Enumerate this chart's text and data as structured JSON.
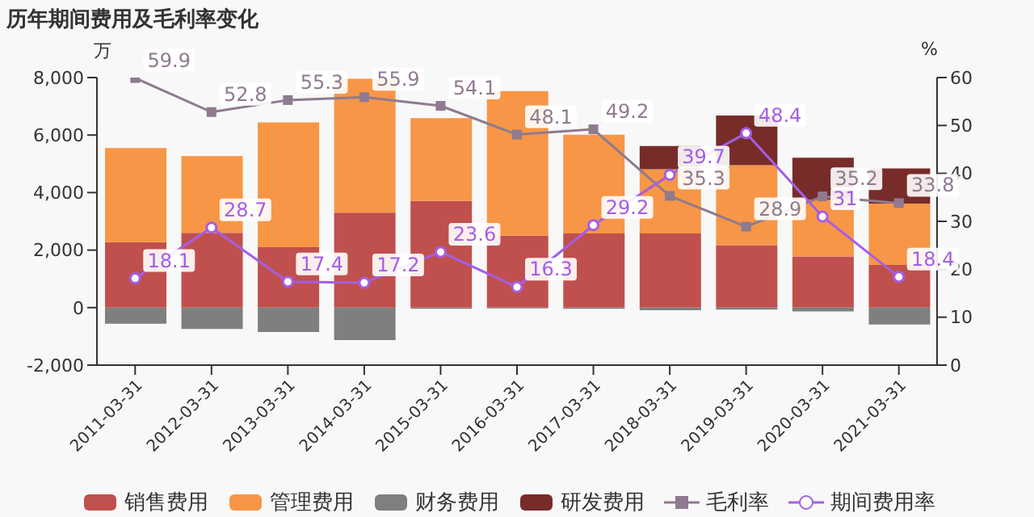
{
  "chart_data": {
    "type": "bar",
    "title": "历年期间费用及毛利率变化",
    "ylabel": "万",
    "y2label": "%",
    "categories": [
      "2011-03-31",
      "2012-03-31",
      "2013-03-31",
      "2014-03-31",
      "2015-03-31",
      "2016-03-31",
      "2017-03-31",
      "2018-03-31",
      "2019-03-31",
      "2020-03-31",
      "2021-03-31"
    ],
    "stacked": true,
    "ylim": [
      -2000,
      8000
    ],
    "yticks": [
      {
        "value": -2000,
        "label": "-2,000"
      },
      0,
      {
        "value": 2000,
        "label": "2,000"
      },
      {
        "value": 4000,
        "label": "4,000"
      },
      {
        "value": 6000,
        "label": "6,000"
      },
      {
        "value": 8000,
        "label": "8,000"
      }
    ],
    "y2lim": [
      0,
      60
    ],
    "y2ticks": [
      0,
      10,
      20,
      30,
      40,
      50,
      60
    ],
    "grid": false,
    "legend": "bottom",
    "series": [
      {
        "name": "销售费用",
        "color": "#c0504d",
        "values": [
          2280,
          2600,
          2100,
          3300,
          3710,
          2500,
          2580,
          2580,
          2170,
          1780,
          1480
        ]
      },
      {
        "name": "管理费用",
        "color": "#f79646",
        "values": [
          3270,
          2670,
          4340,
          4660,
          2880,
          5030,
          3430,
          2230,
          2780,
          1970,
          2140
        ]
      },
      {
        "name": "财务费用",
        "color": "#7f7f7f",
        "values": [
          -560,
          -740,
          -850,
          -1130,
          -40,
          -30,
          -40,
          -90,
          -70,
          -130,
          -590
        ]
      },
      {
        "name": "研发费用",
        "color": "#772c2a",
        "values": [
          null,
          null,
          null,
          null,
          null,
          null,
          null,
          810,
          1730,
          1460,
          1220
        ]
      },
      {
        "name": "毛利率",
        "type": "line",
        "axis": "y2",
        "color": "#8f7a8f",
        "marker": "square",
        "data_labels": true,
        "values": [
          59.9,
          52.8,
          55.3,
          55.9,
          54.1,
          48.1,
          49.2,
          35.3,
          28.9,
          35.2,
          33.8
        ]
      },
      {
        "name": "期间费用率",
        "type": "line",
        "axis": "y2",
        "color": "#a45ee5",
        "marker": "circle",
        "data_labels": true,
        "values": [
          18.1,
          28.7,
          17.4,
          17.2,
          23.6,
          16.3,
          29.2,
          39.7,
          48.4,
          31,
          18.4
        ]
      }
    ]
  }
}
